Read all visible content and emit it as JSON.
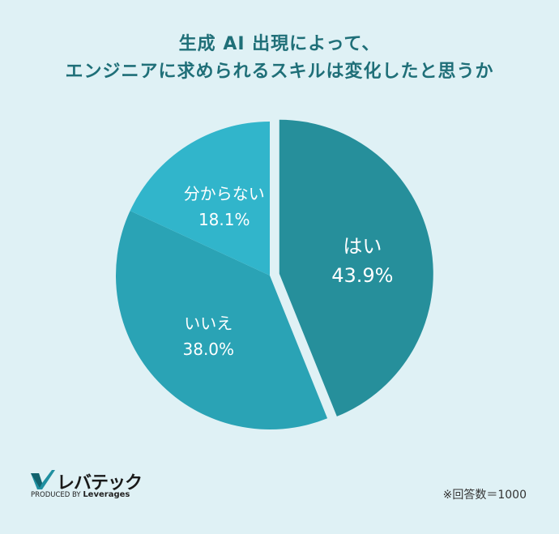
{
  "chart_data": {
    "type": "pie",
    "title_lines": [
      "生成 AI 出現によって、",
      "エンジニアに求められるスキルは変化したと思うか"
    ],
    "slices": [
      {
        "label": "はい",
        "value": 43.9,
        "value_label": "43.9%",
        "color": "#268f9b",
        "exploded": true
      },
      {
        "label": "いいえ",
        "value": 38.0,
        "value_label": "38.0%",
        "color": "#2aa3b5",
        "exploded": false
      },
      {
        "label": "分からない",
        "value": 18.1,
        "value_label": "18.1%",
        "color": "#31b5cb",
        "exploded": false
      }
    ]
  },
  "logo": {
    "name": "レバテック",
    "produced_by": "PRODUCED BY",
    "brand": "Leverages"
  },
  "footnote": "※回答数＝1000"
}
